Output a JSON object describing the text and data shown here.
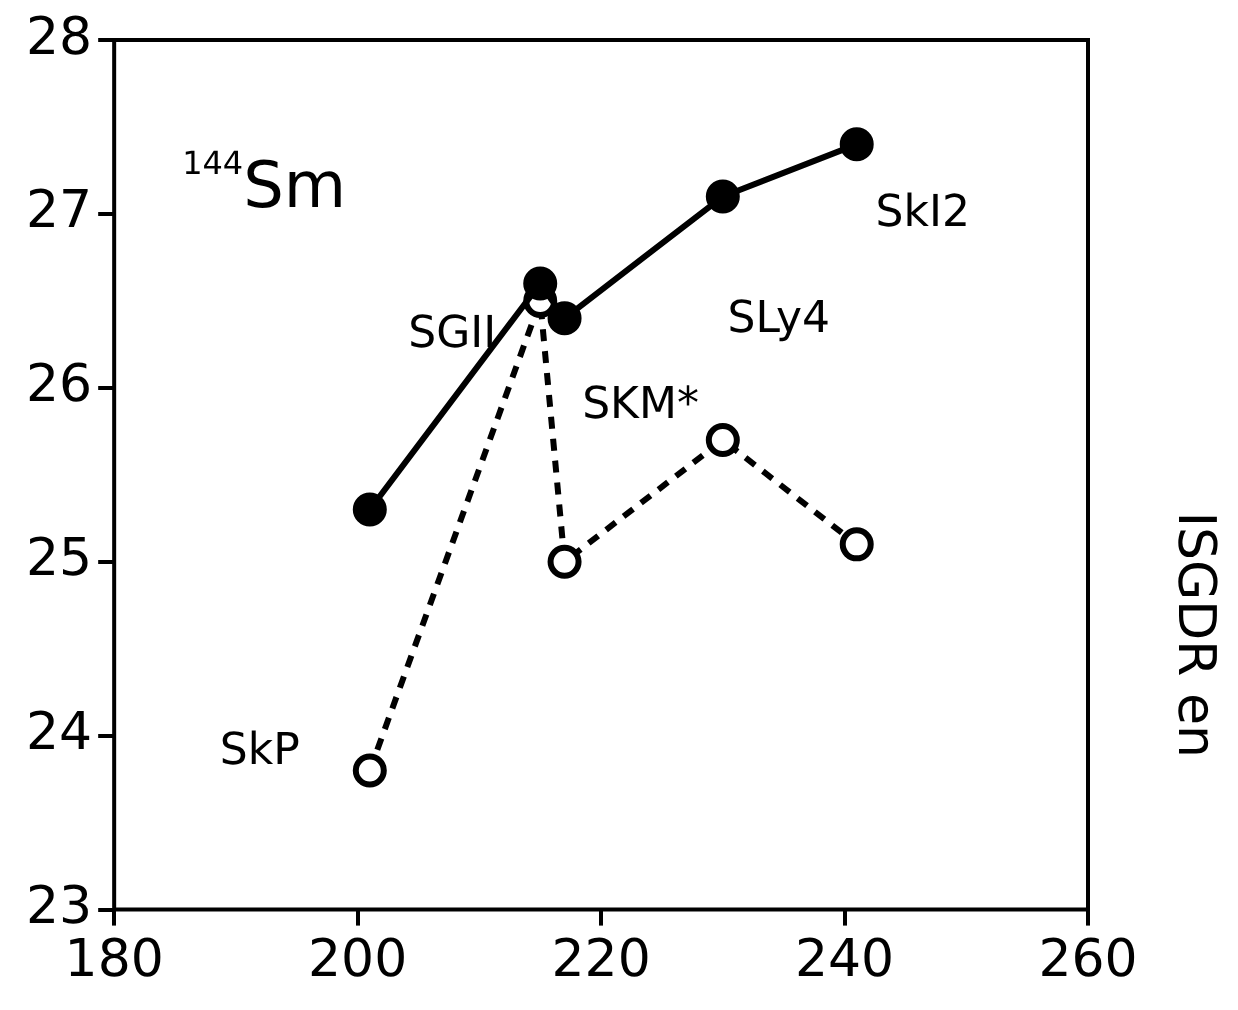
{
  "chart_data": {
    "type": "line",
    "ylabel": "ISGDR en",
    "x": [
      201,
      215,
      217,
      230,
      241
    ],
    "series": [
      {
        "color": "#000000",
        "values": [
          25.3,
          26.6,
          26.4,
          27.1,
          27.4
        ],
        "line_style": "solid"
      },
      {
        "color": "#000000",
        "values": [
          23.8,
          26.5,
          25.0,
          25.7,
          25.1
        ],
        "line_style": "dashed"
      }
    ],
    "xlim": [
      180,
      260
    ],
    "xticks": [
      180,
      200,
      220,
      240,
      260
    ],
    "ylim": [
      23,
      28
    ],
    "yticks": [
      23,
      24,
      25,
      26,
      27,
      28
    ],
    "marker": "circle",
    "grid": false,
    "legend": false,
    "annotations": [
      "$^{144}$Sm",
      {
        "text": "SGII",
        "x": 215,
        "y": 26.6
      },
      {
        "text": "SKM*",
        "x": 217,
        "y": 26.4
      },
      {
        "text": "SLy4",
        "x": 230,
        "y": 27.1
      },
      {
        "text": "SkI2",
        "x": 241,
        "y": 27.4
      },
      {
        "text": "SkP",
        "x": 201,
        "y": 23.8
      }
    ]
  }
}
